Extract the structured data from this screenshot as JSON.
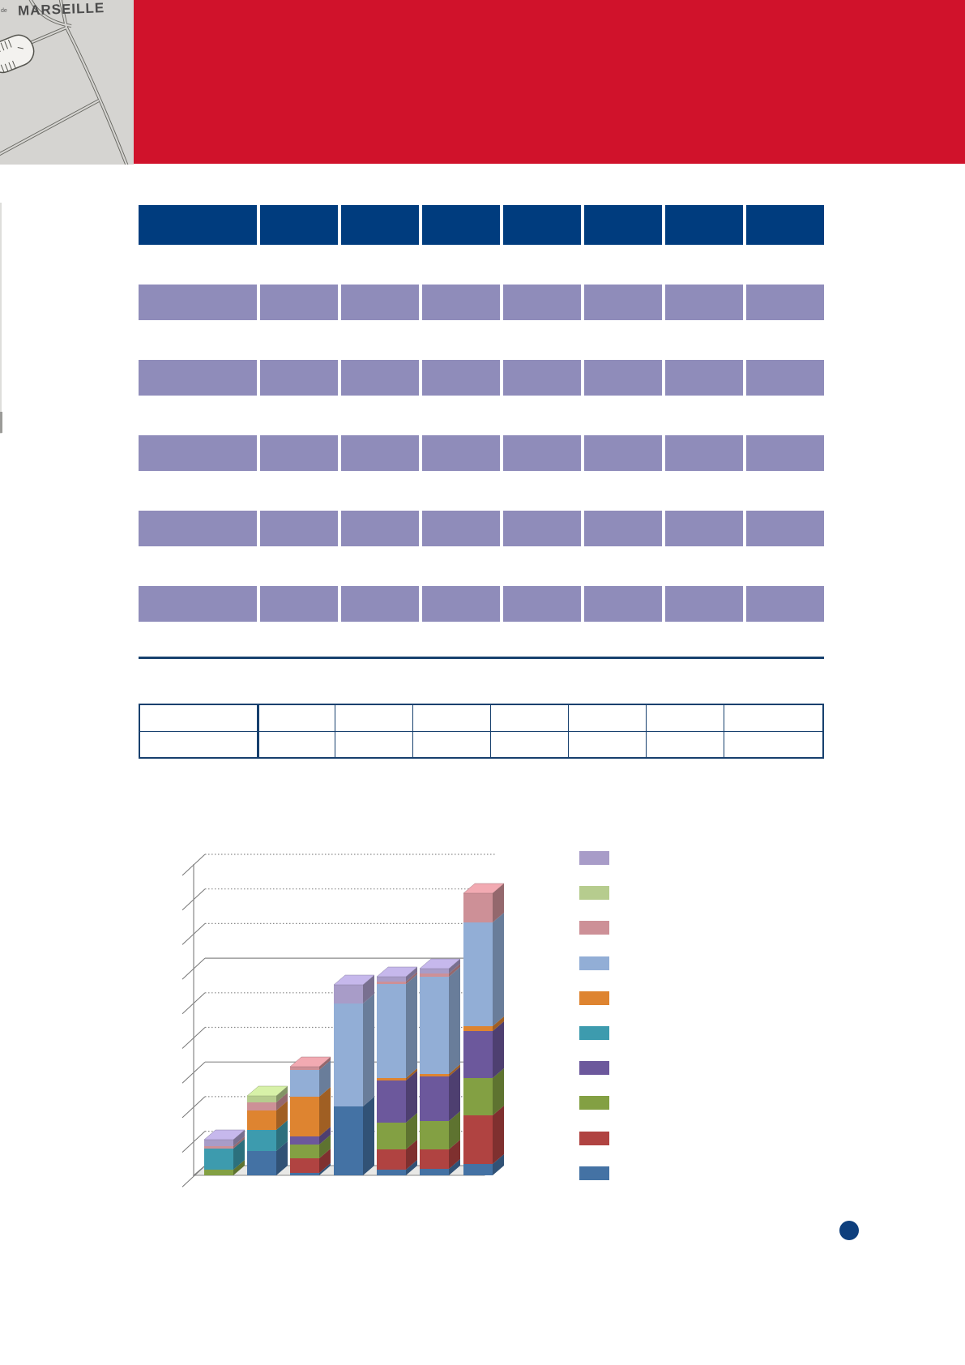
{
  "document": {
    "map_label": "MARSEILLE",
    "map_label_prefix": "de"
  },
  "colors": {
    "banner_red": "#d0122b",
    "header_blue": "#003c7e",
    "row_purple": "#8f8cba",
    "rule_navy": "#17406e",
    "page_dot": "#0e3f7d",
    "map_gray": "#d5d4d1",
    "gridline_gray": "#8a8a8a"
  },
  "main_table": {
    "column_count": 8,
    "row_count": 5,
    "header_cells": [
      "",
      "",
      "",
      "",
      "",
      "",
      "",
      ""
    ],
    "rows": [
      [
        "",
        "",
        "",
        "",
        "",
        "",
        "",
        ""
      ],
      [
        "",
        "",
        "",
        "",
        "",
        "",
        "",
        ""
      ],
      [
        "",
        "",
        "",
        "",
        "",
        "",
        "",
        ""
      ],
      [
        "",
        "",
        "",
        "",
        "",
        "",
        "",
        ""
      ],
      [
        "",
        "",
        "",
        "",
        "",
        "",
        "",
        ""
      ]
    ]
  },
  "bordered_table": {
    "column_count": 8,
    "row_count": 2,
    "rows": [
      [
        "",
        "",
        "",
        "",
        "",
        "",
        "",
        ""
      ],
      [
        "",
        "",
        "",
        "",
        "",
        "",
        "",
        ""
      ]
    ]
  },
  "chart_data": {
    "type": "bar",
    "subtype": "3d-stacked-column",
    "title": "",
    "xlabel": "",
    "ylabel": "",
    "unit": "estimated-pixel-heights (no axis labels visible)",
    "categories": [
      "",
      "",
      "",
      "",
      "",
      "",
      ""
    ],
    "gridline_levels": 10,
    "legend_position": "right",
    "legend_labels": [
      "",
      "",
      "",
      "",
      "",
      "",
      "",
      "",
      "",
      ""
    ],
    "series": [
      {
        "name": "series-blue",
        "color": "#4472a4",
        "values": [
          0,
          30,
          3,
          85,
          7,
          8,
          14
        ]
      },
      {
        "name": "series-red",
        "color": "#b04341",
        "values": [
          0,
          0,
          18,
          0,
          25,
          24,
          60
        ]
      },
      {
        "name": "series-olive-green",
        "color": "#83a043",
        "values": [
          7,
          0,
          17,
          0,
          33,
          35,
          46
        ]
      },
      {
        "name": "series-purple",
        "color": "#6c589c",
        "values": [
          0,
          0,
          10,
          0,
          52,
          55,
          58
        ]
      },
      {
        "name": "series-teal",
        "color": "#3d9bae",
        "values": [
          26,
          26,
          0,
          0,
          0,
          0,
          0
        ]
      },
      {
        "name": "series-orange",
        "color": "#de8430",
        "values": [
          0,
          24,
          49,
          0,
          3,
          3,
          6
        ]
      },
      {
        "name": "series-steel-blue",
        "color": "#92aed6",
        "values": [
          0,
          0,
          33,
          127,
          116,
          120,
          128
        ]
      },
      {
        "name": "series-pink",
        "color": "#cd9097",
        "values": [
          3,
          10,
          4,
          0,
          3,
          4,
          36
        ]
      },
      {
        "name": "series-pale-green",
        "color": "#b6cc8e",
        "values": [
          0,
          8,
          0,
          0,
          0,
          0,
          0
        ]
      },
      {
        "name": "series-lavender",
        "color": "#a89cc8",
        "values": [
          8,
          0,
          0,
          23,
          6,
          6,
          0
        ]
      }
    ]
  },
  "page_marker": {
    "label": ""
  }
}
